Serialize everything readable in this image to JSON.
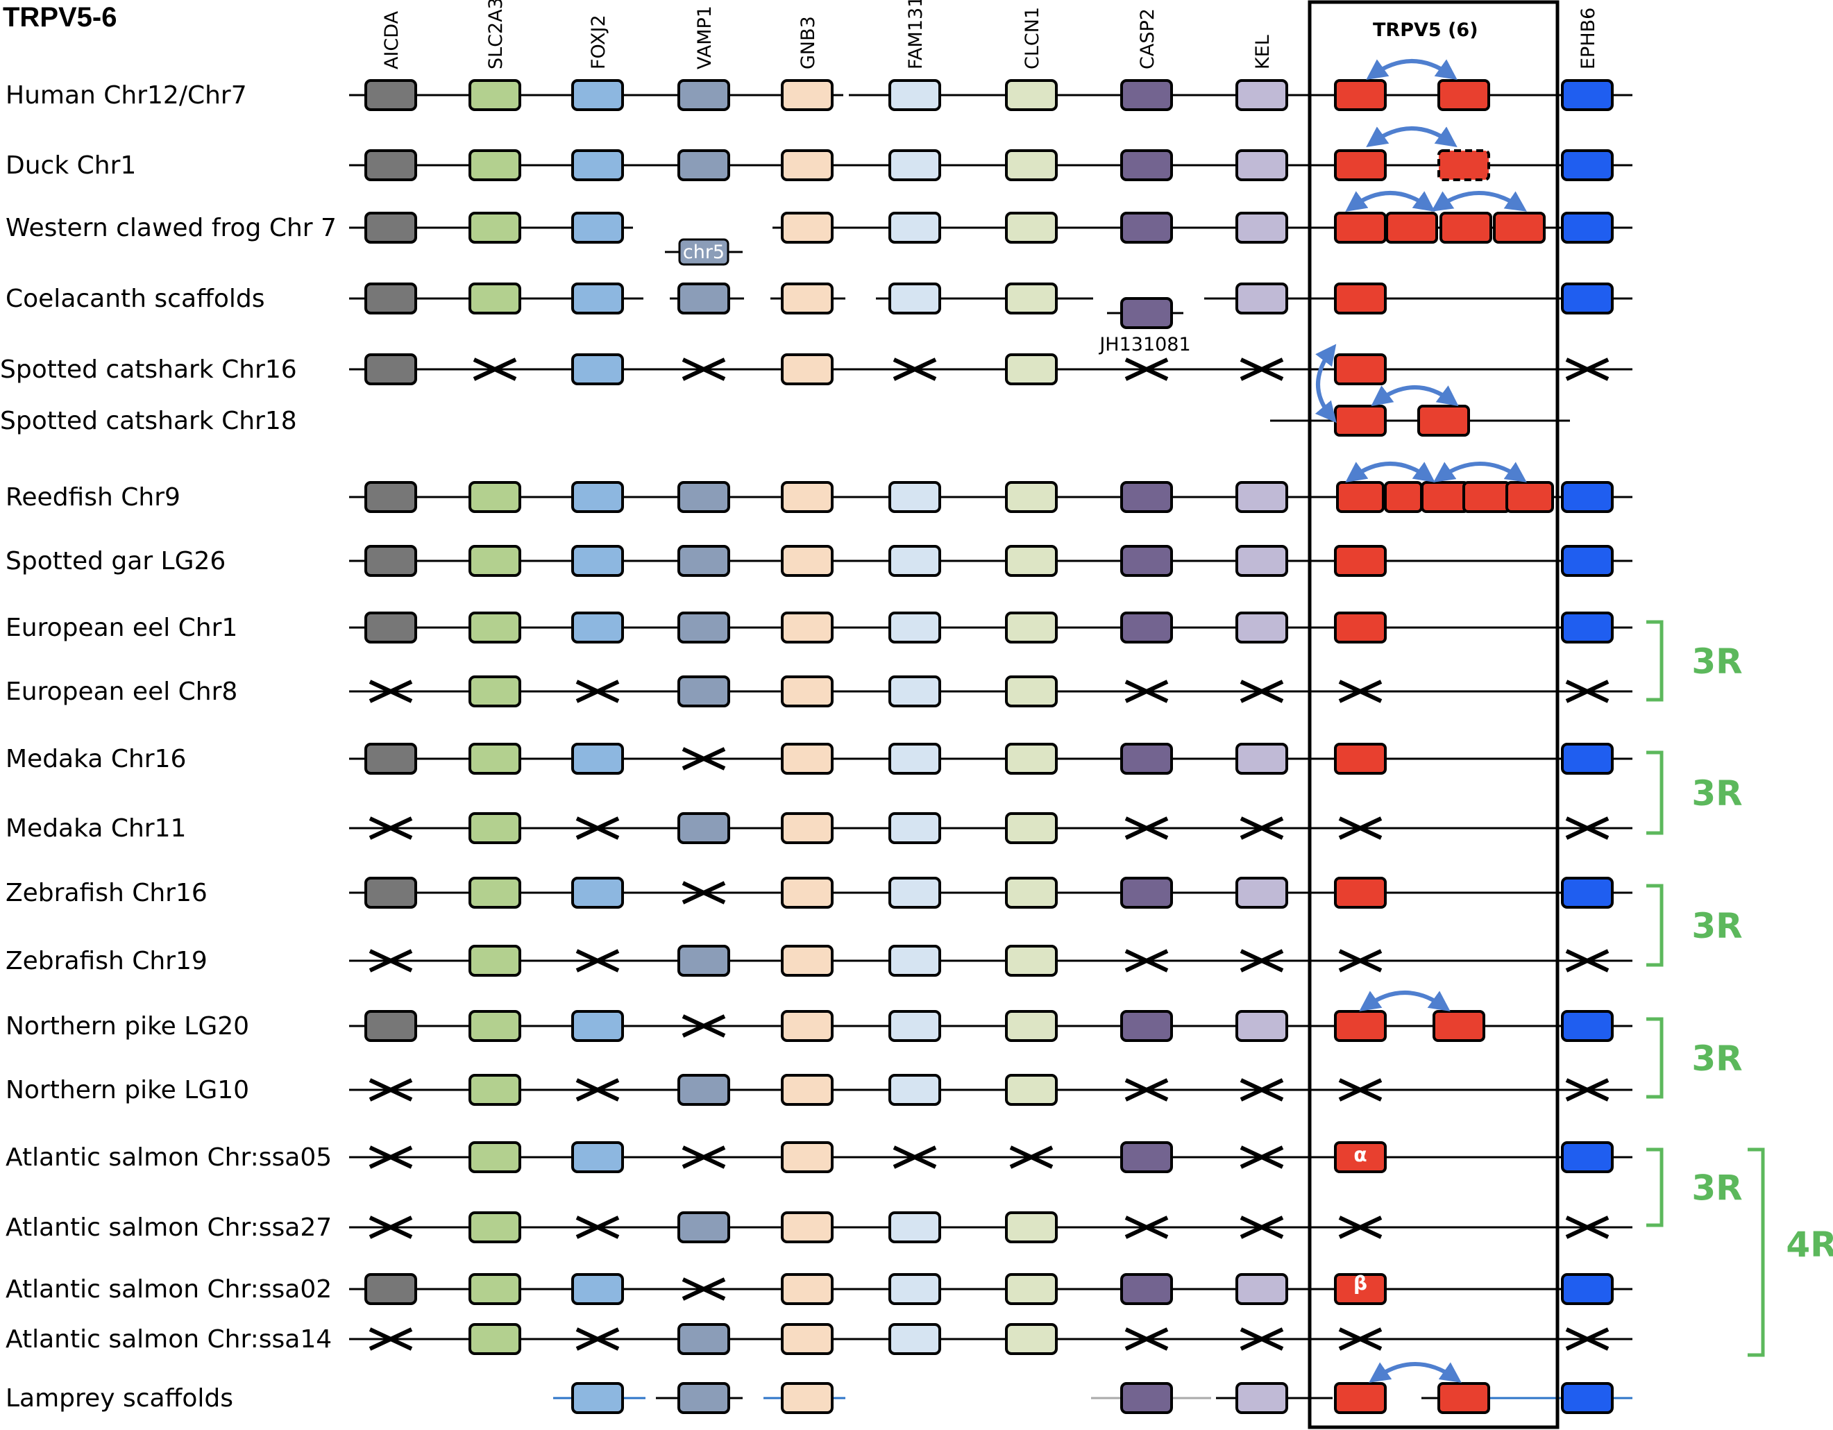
{
  "title": "TRPV5-6",
  "cluster_label": "TRPV5 (6)",
  "genes": [
    "AICDA",
    "SLC2A3",
    "FOXJ2",
    "VAMP1",
    "GNB3",
    "FAM131",
    "CLCN1",
    "CASP2",
    "KEL",
    "EPHB6"
  ],
  "colors": {
    "AICDA": "#777777",
    "SLC2A3": "#b3d08f",
    "FOXJ2": "#8db7e0",
    "VAMP1": "#8b9db8",
    "GNB3": "#f8dcc2",
    "FAM131": "#d6e4f2",
    "CLCN1": "#dde5c5",
    "CASP2": "#736490",
    "KEL": "#c0bad6",
    "EPHB6": "#1f5ef0",
    "TRPV": "#e8402f",
    "arrow": "#4f7fcf",
    "bracket": "#5cb85c",
    "lamprey_line": "#2e75c8",
    "grey_line": "#aaaaaa"
  },
  "rows": [
    {
      "label": "Human Chr12/Chr7",
      "genes": [
        "b",
        "b",
        "b",
        "b",
        "b",
        "b",
        "b",
        "b",
        "b",
        "b"
      ]
    },
    {
      "label": "Duck Chr1",
      "genes": [
        "b",
        "b",
        "b",
        "b",
        "b",
        "b",
        "b",
        "b",
        "b",
        "b"
      ]
    },
    {
      "label": "Western clawed frog Chr 7",
      "genes": [
        "b",
        "b",
        "b",
        "n",
        "b",
        "b",
        "b",
        "b",
        "b",
        "b"
      ]
    },
    {
      "label": "Coelacanth  scaffolds",
      "genes": [
        "b",
        "b",
        "b",
        "b",
        "b",
        "b",
        "b",
        "n",
        "b",
        "b"
      ]
    },
    {
      "label": "Spotted catshark Chr16",
      "genes": [
        "b",
        "x",
        "b",
        "x",
        "b",
        "x",
        "b",
        "x",
        "x",
        "x"
      ]
    },
    {
      "label": "Spotted catshark Chr18",
      "genes": [
        "n",
        "n",
        "n",
        "n",
        "n",
        "n",
        "n",
        "n",
        "n",
        "n"
      ]
    },
    {
      "label": "Reedfish Chr9",
      "genes": [
        "b",
        "b",
        "b",
        "b",
        "b",
        "b",
        "b",
        "b",
        "b",
        "b"
      ]
    },
    {
      "label": "Spotted gar LG26",
      "genes": [
        "b",
        "b",
        "b",
        "b",
        "b",
        "b",
        "b",
        "b",
        "b",
        "b"
      ]
    },
    {
      "label": "European eel Chr1",
      "genes": [
        "b",
        "b",
        "b",
        "b",
        "b",
        "b",
        "b",
        "b",
        "b",
        "b"
      ]
    },
    {
      "label": "European eel Chr8",
      "genes": [
        "x",
        "b",
        "x",
        "b",
        "b",
        "b",
        "b",
        "x",
        "x",
        "x"
      ]
    },
    {
      "label": "Medaka Chr16",
      "genes": [
        "b",
        "b",
        "b",
        "x",
        "b",
        "b",
        "b",
        "b",
        "b",
        "b"
      ]
    },
    {
      "label": "Medaka Chr11",
      "genes": [
        "x",
        "b",
        "x",
        "b",
        "b",
        "b",
        "b",
        "x",
        "x",
        "x"
      ]
    },
    {
      "label": "Zebrafish Chr16",
      "genes": [
        "b",
        "b",
        "b",
        "x",
        "b",
        "b",
        "b",
        "b",
        "b",
        "b"
      ]
    },
    {
      "label": "Zebrafish Chr19",
      "genes": [
        "x",
        "b",
        "x",
        "b",
        "b",
        "b",
        "b",
        "x",
        "x",
        "x"
      ]
    },
    {
      "label": "Northern pike LG20",
      "genes": [
        "b",
        "b",
        "b",
        "x",
        "b",
        "b",
        "b",
        "b",
        "b",
        "b"
      ]
    },
    {
      "label": "Northern pike LG10",
      "genes": [
        "x",
        "b",
        "x",
        "b",
        "b",
        "b",
        "b",
        "x",
        "x",
        "x"
      ]
    },
    {
      "label": "Atlantic salmon Chr:ssa05",
      "genes": [
        "x",
        "b",
        "b",
        "x",
        "b",
        "x",
        "x",
        "b",
        "x",
        "b"
      ]
    },
    {
      "label": "Atlantic salmon Chr:ssa27",
      "genes": [
        "x",
        "b",
        "x",
        "b",
        "b",
        "b",
        "b",
        "x",
        "x",
        "x"
      ]
    },
    {
      "label": "Atlantic salmon Chr:ssa02",
      "genes": [
        "b",
        "b",
        "b",
        "x",
        "b",
        "b",
        "b",
        "b",
        "b",
        "b"
      ]
    },
    {
      "label": "Atlantic salmon Chr:ssa14",
      "genes": [
        "x",
        "b",
        "x",
        "b",
        "b",
        "b",
        "b",
        "x",
        "x",
        "x"
      ]
    },
    {
      "label": "Lamprey  scaffolds",
      "genes": [
        "n",
        "n",
        "b",
        "b",
        "b",
        "n",
        "n",
        "b",
        "b",
        "b"
      ]
    }
  ],
  "annotations": {
    "chr5": "chr5",
    "scaffold": "JH131081",
    "alpha": "α",
    "beta": "β",
    "r3": "3R",
    "r4": "4R"
  }
}
